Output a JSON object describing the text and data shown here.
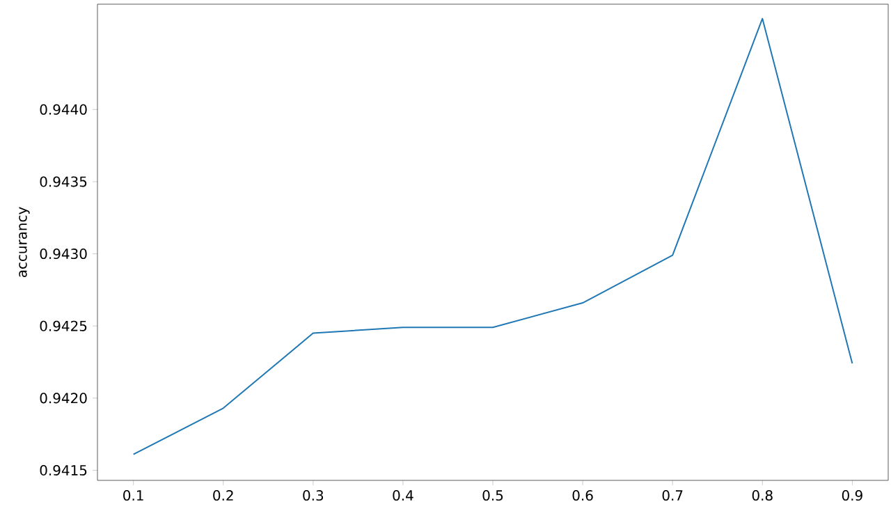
{
  "chart_data": {
    "type": "line",
    "ylabel": "accurancy",
    "x": [
      0.1,
      0.2,
      0.3,
      0.4,
      0.5,
      0.6,
      0.7,
      0.8,
      0.9
    ],
    "series": [
      {
        "color": "#1f77b4",
        "values": [
          0.94161,
          0.94193,
          0.94245,
          0.94249,
          0.94249,
          0.94266,
          0.94299,
          0.94463,
          0.94224
        ]
      }
    ],
    "xlim": [
      0.06,
      0.94
    ],
    "ylim": [
      0.94143,
      0.94473
    ],
    "xticks": [
      0.1,
      0.2,
      0.3,
      0.4,
      0.5,
      0.6,
      0.7,
      0.8,
      0.9
    ],
    "yticks": [
      0.9415,
      {
        "value": 0.942,
        "label": "0.9420"
      },
      0.9425,
      {
        "value": 0.943,
        "label": "0.9430"
      },
      0.9435,
      {
        "value": 0.944,
        "label": "0.9440"
      }
    ],
    "grid": false,
    "marker": "none",
    "line_style": "solid"
  }
}
